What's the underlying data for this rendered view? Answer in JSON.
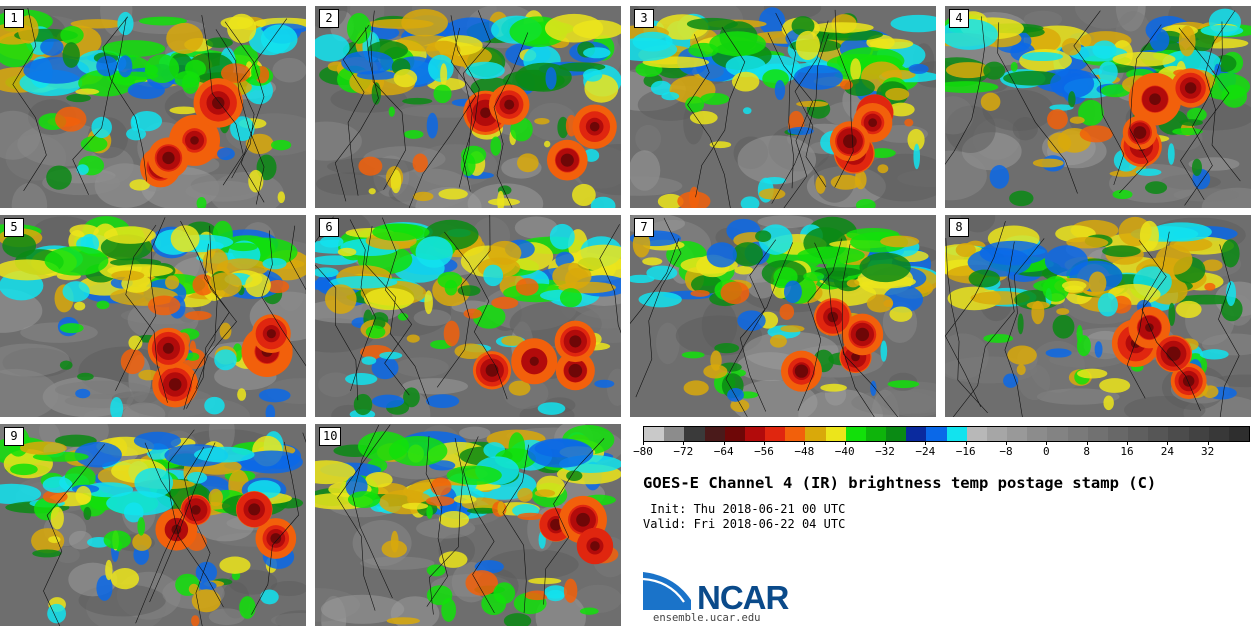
{
  "panels": [
    {
      "label": "1"
    },
    {
      "label": "2"
    },
    {
      "label": "3"
    },
    {
      "label": "4"
    },
    {
      "label": "5"
    },
    {
      "label": "6"
    },
    {
      "label": "7"
    },
    {
      "label": "8"
    },
    {
      "label": "9"
    },
    {
      "label": "10"
    }
  ],
  "colorbar": {
    "min": -80,
    "max": 40,
    "step": 4,
    "tick_labels": [
      "−80",
      "−72",
      "−64",
      "−56",
      "−48",
      "−40",
      "−32",
      "−24",
      "−16",
      "−8",
      "0",
      "8",
      "16",
      "24",
      "32"
    ],
    "tick_values": [
      -80,
      -72,
      -64,
      -56,
      -48,
      -40,
      -32,
      -24,
      -16,
      -8,
      0,
      8,
      16,
      24,
      32
    ],
    "colors": [
      "#c9c9c9",
      "#8c8c8c",
      "#3a3a3a",
      "#4a1a1a",
      "#6e0707",
      "#b20b0b",
      "#e0260f",
      "#f2600b",
      "#d9a90a",
      "#ece51b",
      "#12e00a",
      "#0eb40b",
      "#0a8a14",
      "#0a2a9e",
      "#0a68e8",
      "#12e3ee",
      "#b8b8b8",
      "#a6a6a6",
      "#999999",
      "#8c8c8c",
      "#838383",
      "#7a7a7a",
      "#717171",
      "#686868",
      "#5f5f5f",
      "#565656",
      "#4c4c4c",
      "#424242",
      "#383838",
      "#2e2e2e"
    ]
  },
  "title": "GOES-E Channel 4 (IR) brightness temp postage stamp (C)",
  "init_line": " Init: Thu 2018-06-21 00 UTC",
  "valid_line": "Valid: Fri 2018-06-22 04 UTC",
  "logo": {
    "text": "NCAR",
    "color": "#0a4a8a",
    "swoosh_color": "#1a73c9"
  },
  "url": "ensemble.ucar.edu"
}
